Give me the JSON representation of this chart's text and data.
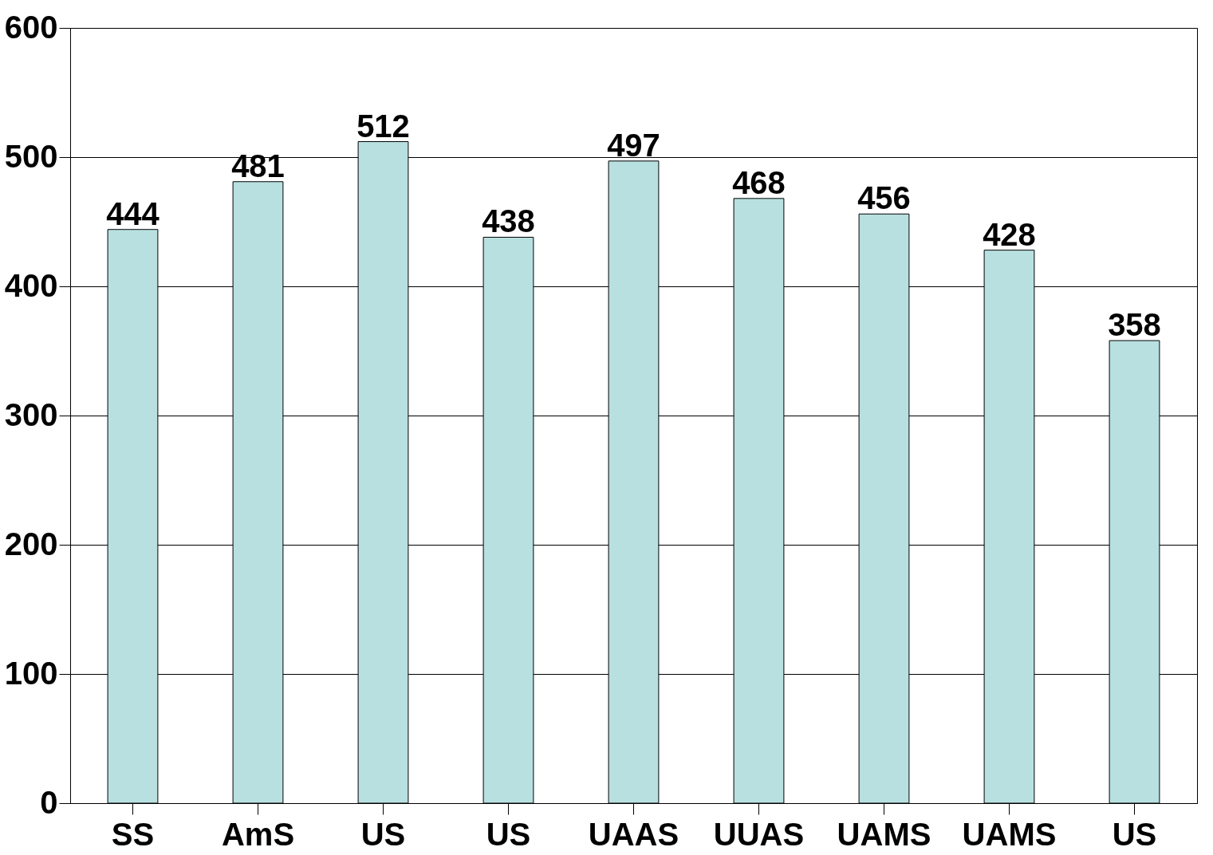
{
  "chart_data": {
    "type": "bar",
    "categories": [
      "SS",
      "AmS",
      "US",
      "US",
      "UAAS",
      "UUAS",
      "UAMS",
      "UAMS",
      "US"
    ],
    "values": [
      444,
      481,
      512,
      438,
      497,
      468,
      456,
      428,
      358
    ],
    "color": "#b8e0e0",
    "ylim": [
      0,
      600
    ],
    "yticks": [
      0,
      100,
      200,
      300,
      400,
      500,
      600
    ],
    "grid": "y",
    "data_labels": true
  }
}
